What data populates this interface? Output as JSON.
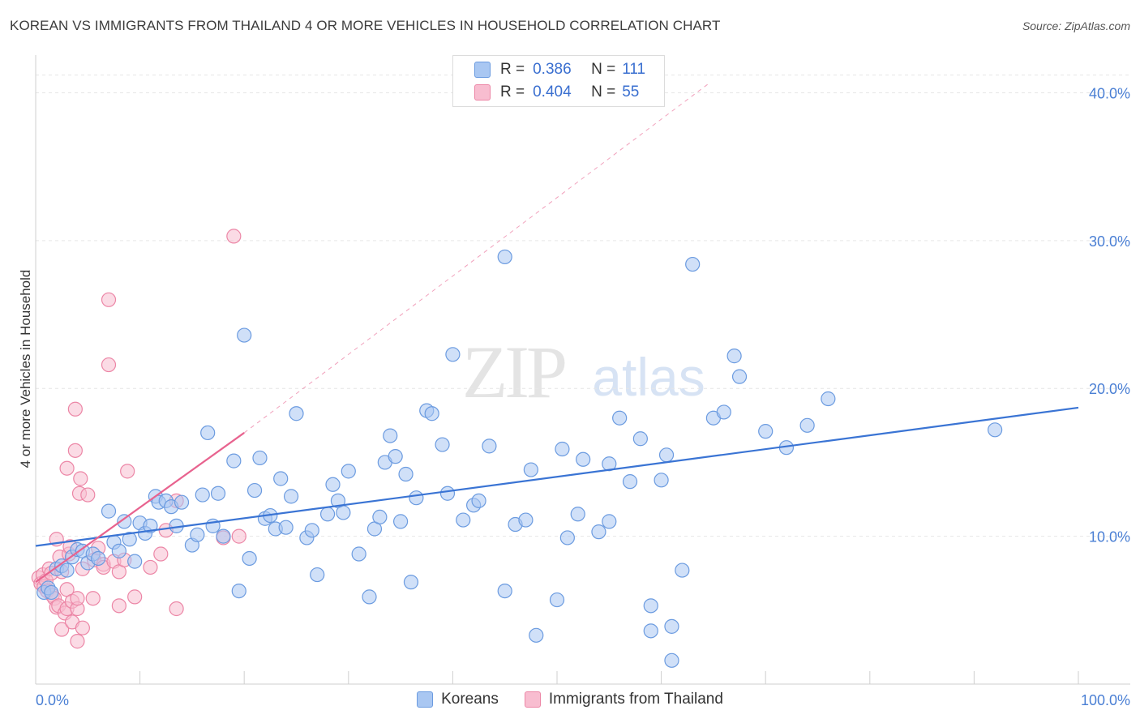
{
  "title": "KOREAN VS IMMIGRANTS FROM THAILAND 4 OR MORE VEHICLES IN HOUSEHOLD CORRELATION CHART",
  "source": "Source: ZipAtlas.com",
  "watermark": {
    "zip": "ZIP",
    "atlas": "atlas"
  },
  "legend": {
    "r_label": "R =",
    "n_label": "N =",
    "items": [
      {
        "name": "Koreans",
        "r": "0.386",
        "n": "111",
        "fill": "#a9c7f2",
        "stroke": "#6b9be0"
      },
      {
        "name": "Immigrants from Thailand",
        "r": "0.404",
        "n": "55",
        "fill": "#f8bdd0",
        "stroke": "#ec86a6"
      }
    ]
  },
  "chart_data": {
    "type": "scatter",
    "title": "KOREAN VS IMMIGRANTS FROM THAILAND 4 OR MORE VEHICLES IN HOUSEHOLD CORRELATION CHART",
    "xlabel": "",
    "ylabel": "4 or more Vehicles in Household",
    "xlim": [
      0,
      100
    ],
    "ylim": [
      0,
      42
    ],
    "x_tick_labels": [
      "0.0%",
      "100.0%"
    ],
    "y_ticks": [
      10,
      20,
      30,
      40
    ],
    "y_tick_labels": [
      "10.0%",
      "20.0%",
      "30.0%",
      "40.0%"
    ],
    "grid": true,
    "colors": {
      "korean": "#3a74d4",
      "thai": "#e8638f"
    },
    "series": [
      {
        "name": "Koreans",
        "points": [
          [
            0.8,
            6.2
          ],
          [
            1.2,
            6.5
          ],
          [
            1.5,
            6.2
          ],
          [
            2,
            7.8
          ],
          [
            2.5,
            8.0
          ],
          [
            3,
            7.7
          ],
          [
            3.5,
            8.6
          ],
          [
            4,
            9.1
          ],
          [
            4.5,
            9.0
          ],
          [
            5,
            8.2
          ],
          [
            5.5,
            8.8
          ],
          [
            6,
            8.5
          ],
          [
            7,
            11.7
          ],
          [
            7.5,
            9.6
          ],
          [
            8,
            9.0
          ],
          [
            8.5,
            11.0
          ],
          [
            9,
            9.8
          ],
          [
            9.5,
            8.3
          ],
          [
            10,
            10.9
          ],
          [
            10.5,
            10.2
          ],
          [
            11,
            10.7
          ],
          [
            11.5,
            12.7
          ],
          [
            11.8,
            12.3
          ],
          [
            12.5,
            12.4
          ],
          [
            13,
            12.0
          ],
          [
            13.5,
            10.7
          ],
          [
            14,
            12.3
          ],
          [
            15,
            9.4
          ],
          [
            15.5,
            10.1
          ],
          [
            16,
            12.8
          ],
          [
            16.5,
            17.0
          ],
          [
            17,
            10.7
          ],
          [
            17.5,
            12.9
          ],
          [
            18,
            10.0
          ],
          [
            19,
            15.1
          ],
          [
            19.5,
            6.3
          ],
          [
            20,
            23.6
          ],
          [
            20.5,
            8.5
          ],
          [
            21,
            13.1
          ],
          [
            21.5,
            15.3
          ],
          [
            22,
            11.2
          ],
          [
            22.5,
            11.4
          ],
          [
            23,
            10.5
          ],
          [
            23.5,
            13.9
          ],
          [
            24,
            10.6
          ],
          [
            24.5,
            12.7
          ],
          [
            25,
            18.3
          ],
          [
            26,
            9.9
          ],
          [
            26.5,
            10.4
          ],
          [
            27,
            7.4
          ],
          [
            28,
            11.5
          ],
          [
            28.5,
            13.5
          ],
          [
            29,
            12.4
          ],
          [
            29.5,
            11.6
          ],
          [
            30,
            14.4
          ],
          [
            31,
            8.8
          ],
          [
            32,
            5.9
          ],
          [
            32.5,
            10.5
          ],
          [
            33,
            11.3
          ],
          [
            33.5,
            15.0
          ],
          [
            34,
            16.8
          ],
          [
            34.5,
            15.4
          ],
          [
            35,
            11.0
          ],
          [
            35.5,
            14.2
          ],
          [
            36,
            6.9
          ],
          [
            36.5,
            12.6
          ],
          [
            37.5,
            18.5
          ],
          [
            38,
            18.3
          ],
          [
            39,
            16.2
          ],
          [
            39.5,
            12.9
          ],
          [
            40,
            22.3
          ],
          [
            41,
            11.1
          ],
          [
            42,
            12.1
          ],
          [
            42.5,
            12.4
          ],
          [
            43.5,
            16.1
          ],
          [
            45,
            6.3
          ],
          [
            45,
            28.9
          ],
          [
            46,
            10.8
          ],
          [
            47,
            11.1
          ],
          [
            47.5,
            14.5
          ],
          [
            48,
            3.3
          ],
          [
            50,
            5.7
          ],
          [
            50.5,
            15.9
          ],
          [
            51,
            9.9
          ],
          [
            52,
            11.5
          ],
          [
            52.5,
            15.2
          ],
          [
            54,
            10.3
          ],
          [
            55,
            11.0
          ],
          [
            55,
            14.9
          ],
          [
            56,
            18.0
          ],
          [
            57,
            13.7
          ],
          [
            58,
            16.6
          ],
          [
            59,
            5.3
          ],
          [
            59,
            3.6
          ],
          [
            60,
            13.8
          ],
          [
            60.5,
            15.5
          ],
          [
            61,
            1.6
          ],
          [
            61,
            3.9
          ],
          [
            62,
            7.7
          ],
          [
            63,
            28.4
          ],
          [
            65,
            18.0
          ],
          [
            66,
            18.4
          ],
          [
            67,
            22.2
          ],
          [
            67.5,
            20.8
          ],
          [
            70,
            17.1
          ],
          [
            72,
            16.0
          ],
          [
            74,
            17.5
          ],
          [
            76,
            19.3
          ],
          [
            92,
            17.2
          ]
        ]
      },
      {
        "name": "Immigrants from Thailand",
        "points": [
          [
            0.3,
            7.2
          ],
          [
            0.5,
            6.8
          ],
          [
            0.7,
            7.4
          ],
          [
            0.8,
            6.6
          ],
          [
            1,
            7.0
          ],
          [
            1.1,
            6.3
          ],
          [
            1.3,
            7.8
          ],
          [
            1.5,
            7.5
          ],
          [
            1.6,
            6.0
          ],
          [
            1.8,
            5.8
          ],
          [
            2,
            5.2
          ],
          [
            2,
            9.8
          ],
          [
            2.2,
            5.3
          ],
          [
            2.3,
            8.6
          ],
          [
            2.5,
            3.7
          ],
          [
            2.5,
            7.6
          ],
          [
            2.8,
            4.8
          ],
          [
            3,
            14.6
          ],
          [
            3,
            6.4
          ],
          [
            3,
            5.1
          ],
          [
            3.2,
            8.8
          ],
          [
            3.3,
            9.3
          ],
          [
            3.5,
            5.6
          ],
          [
            3.5,
            4.2
          ],
          [
            3.8,
            18.6
          ],
          [
            3.8,
            15.8
          ],
          [
            4,
            2.9
          ],
          [
            4,
            5.1
          ],
          [
            4,
            5.8
          ],
          [
            4.2,
            12.9
          ],
          [
            4.3,
            13.9
          ],
          [
            4.5,
            7.8
          ],
          [
            4.5,
            3.8
          ],
          [
            5,
            12.8
          ],
          [
            5.5,
            5.8
          ],
          [
            5.6,
            8.4
          ],
          [
            6,
            9.2
          ],
          [
            6.5,
            8.1
          ],
          [
            6.5,
            7.9
          ],
          [
            7,
            26.0
          ],
          [
            7,
            21.6
          ],
          [
            7.5,
            8.3
          ],
          [
            8,
            5.3
          ],
          [
            8,
            7.6
          ],
          [
            8.5,
            8.4
          ],
          [
            8.8,
            14.4
          ],
          [
            9.5,
            5.9
          ],
          [
            11,
            7.9
          ],
          [
            12,
            8.8
          ],
          [
            12.5,
            10.4
          ],
          [
            13.5,
            12.4
          ],
          [
            13.5,
            5.1
          ],
          [
            18,
            9.9
          ],
          [
            19,
            30.3
          ],
          [
            19.5,
            10.0
          ]
        ]
      }
    ],
    "trendlines": [
      {
        "series": "Koreans",
        "from": [
          0,
          9.35
        ],
        "to": [
          100,
          18.7
        ],
        "style": "solid"
      },
      {
        "series": "Immigrants from Thailand",
        "from": [
          0,
          6.9
        ],
        "to": [
          20,
          17.0
        ],
        "style": "solid"
      },
      {
        "series": "Immigrants from Thailand",
        "from": [
          20,
          17.0
        ],
        "to": [
          64.5,
          40.6
        ],
        "style": "dashed"
      }
    ]
  }
}
